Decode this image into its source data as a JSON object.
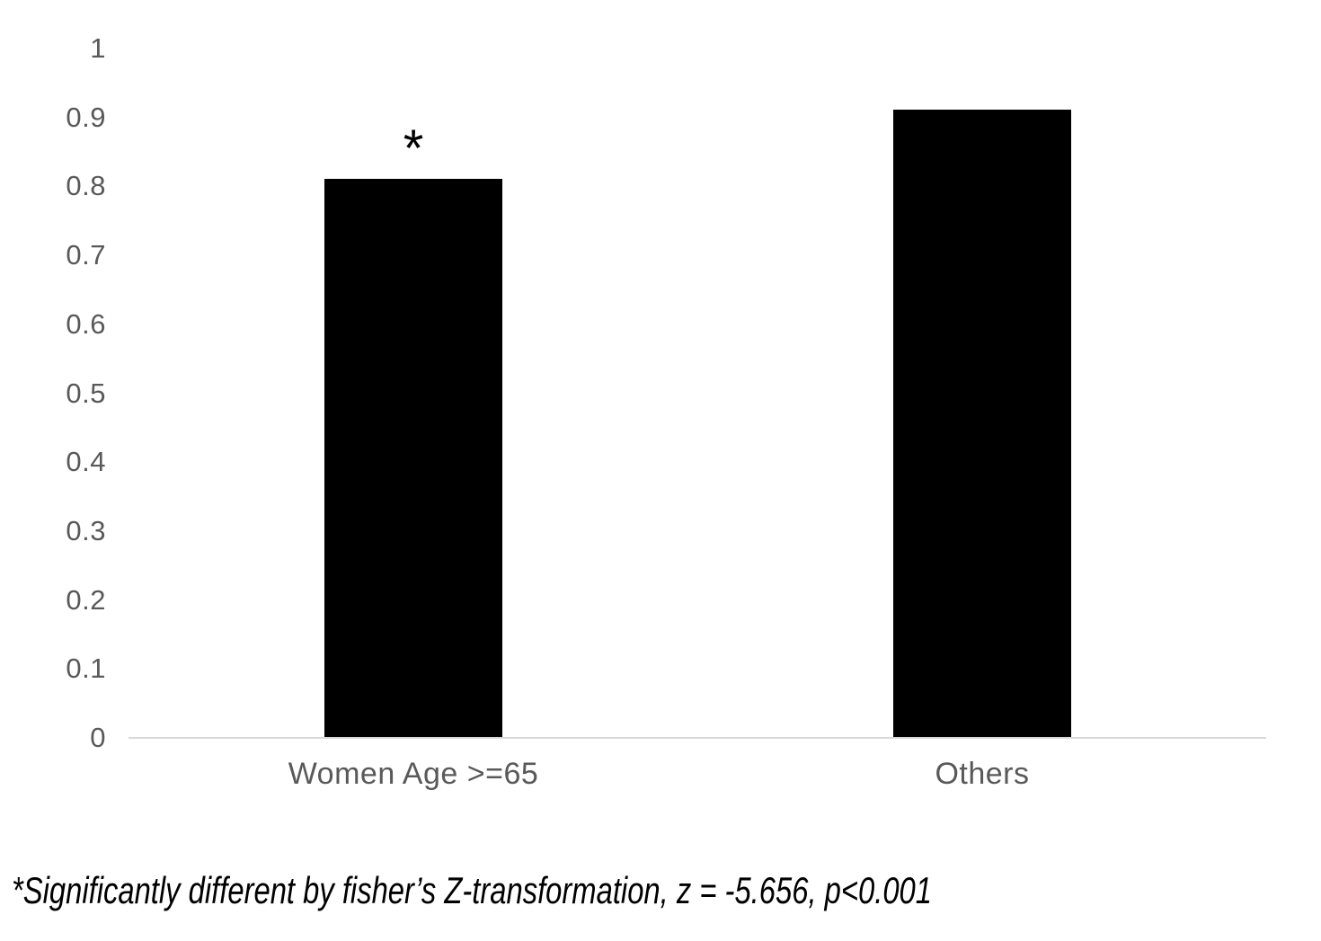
{
  "chart_data": {
    "type": "bar",
    "title": "",
    "categories": [
      "Women Age >=65",
      "Others"
    ],
    "values": [
      0.81,
      0.91
    ],
    "bar_annotations": [
      "*",
      ""
    ],
    "xlabel": "",
    "ylabel": "",
    "ylim": [
      0,
      1
    ],
    "ytick_labels": [
      "0",
      "0.1",
      "0.2",
      "0.3",
      "0.4",
      "0.5",
      "0.6",
      "0.7",
      "0.8",
      "0.9",
      "1"
    ],
    "grid": "off",
    "legend": "none",
    "bar_color": "#000000",
    "tick_label_color": "#595959",
    "axis_line_color": "#d9d9d9",
    "footnote": "*Significantly different by fisher’s Z-transformation, z = -5.656, p<0.001",
    "footnote_color": "#000000"
  }
}
